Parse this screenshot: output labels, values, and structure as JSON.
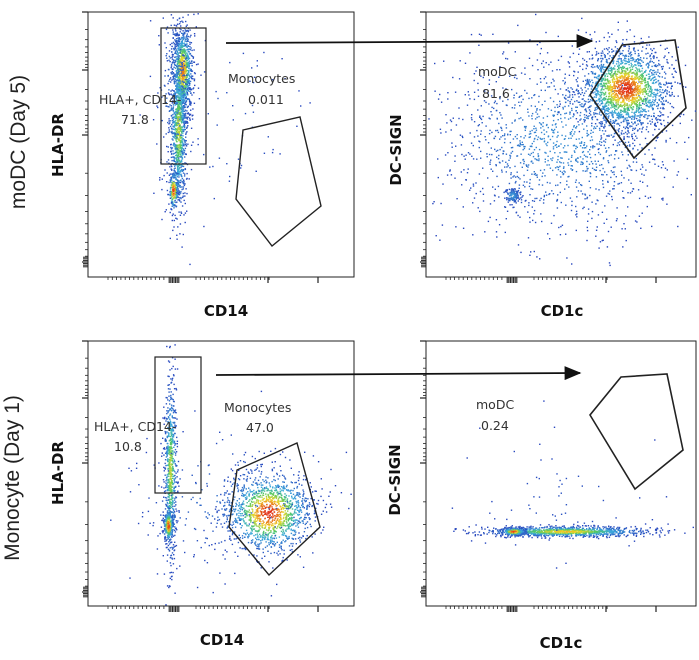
{
  "figure": {
    "rows": [
      {
        "label": "moDC (Day 5)"
      },
      {
        "label": "Monocyte (Day 1)"
      }
    ]
  },
  "chart_data": [
    {
      "type": "scatter",
      "plot_kind": "flow-cytometry-density",
      "row": "moDC (Day 5)",
      "xlabel": "CD14",
      "ylabel": "HLA-DR",
      "scale": "log",
      "gates": [
        {
          "name": "HLA+, CD14-",
          "value": "71.8"
        },
        {
          "name": "Monocytes",
          "value": "0.011"
        }
      ]
    },
    {
      "type": "scatter",
      "plot_kind": "flow-cytometry-density",
      "row": "moDC (Day 5)",
      "xlabel": "CD1c",
      "ylabel": "DC-SIGN",
      "scale": "log",
      "gates": [
        {
          "name": "moDC",
          "value": "81.6"
        }
      ]
    },
    {
      "type": "scatter",
      "plot_kind": "flow-cytometry-density",
      "row": "Monocyte (Day 1)",
      "xlabel": "CD14",
      "ylabel": "HLA-DR",
      "scale": "log",
      "gates": [
        {
          "name": "HLA+, CD14-",
          "value": "10.8"
        },
        {
          "name": "Monocytes",
          "value": "47.0"
        }
      ]
    },
    {
      "type": "scatter",
      "plot_kind": "flow-cytometry-density",
      "row": "Monocyte (Day 1)",
      "xlabel": "CD1c",
      "ylabel": "DC-SIGN",
      "scale": "log",
      "gates": [
        {
          "name": "moDC",
          "value": "0.24"
        }
      ]
    }
  ]
}
